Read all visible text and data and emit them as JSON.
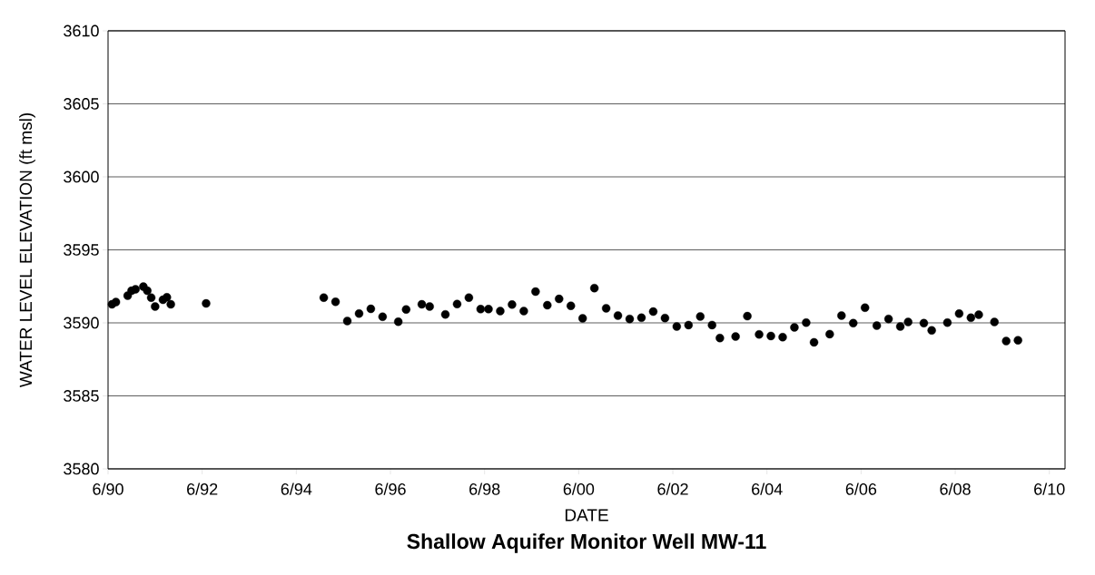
{
  "chart_data": {
    "type": "scatter",
    "title": "**Shallow Aquifer Monitor Well MW-11**",
    "xlabel": "DATE",
    "ylabel": "WATER LEVEL ELEVATION (ft msl)",
    "x": [
      "1990-07",
      "1990-08",
      "1990-11",
      "1990-12",
      "1991-01",
      "1991-03",
      "1991-04",
      "1991-05",
      "1991-06",
      "1991-08",
      "1991-09",
      "1991-10",
      "1992-07",
      "1995-01",
      "1995-04",
      "1995-07",
      "1995-10",
      "1996-01",
      "1996-04",
      "1996-08",
      "1996-10",
      "1997-02",
      "1997-04",
      "1997-08",
      "1997-11",
      "1998-02",
      "1998-05",
      "1998-07",
      "1998-10",
      "1999-01",
      "1999-04",
      "1999-07",
      "1999-10",
      "2000-01",
      "2000-04",
      "2000-07",
      "2000-10",
      "2001-01",
      "2001-04",
      "2001-07",
      "2001-10",
      "2002-01",
      "2002-04",
      "2002-07",
      "2002-10",
      "2003-01",
      "2003-04",
      "2003-06",
      "2003-10",
      "2004-01",
      "2004-04",
      "2004-07",
      "2004-10",
      "2005-01",
      "2005-04",
      "2005-06",
      "2005-10",
      "2006-01",
      "2006-04",
      "2006-07",
      "2006-10",
      "2007-01",
      "2007-04",
      "2007-06",
      "2007-10",
      "2007-12",
      "2008-04",
      "2008-07",
      "2008-10",
      "2008-12",
      "2009-04",
      "2009-07",
      "2009-10"
    ],
    "values": [
      3591.27,
      3591.42,
      3591.86,
      3592.2,
      3592.3,
      3592.48,
      3592.2,
      3591.73,
      3591.12,
      3591.58,
      3591.75,
      3591.27,
      3591.33,
      3591.73,
      3591.44,
      3590.13,
      3590.64,
      3590.96,
      3590.42,
      3590.08,
      3590.92,
      3591.27,
      3591.12,
      3590.58,
      3591.29,
      3591.73,
      3590.94,
      3590.94,
      3590.81,
      3591.25,
      3590.81,
      3592.14,
      3591.21,
      3591.64,
      3591.17,
      3590.31,
      3592.38,
      3591.0,
      3590.5,
      3590.27,
      3590.35,
      3590.77,
      3590.33,
      3589.75,
      3589.85,
      3590.44,
      3589.85,
      3588.96,
      3589.06,
      3590.46,
      3589.21,
      3589.1,
      3589.02,
      3589.69,
      3590.02,
      3588.67,
      3589.23,
      3590.5,
      3589.98,
      3591.04,
      3589.81,
      3590.27,
      3589.75,
      3590.06,
      3589.98,
      3589.48,
      3590.02,
      3590.63,
      3590.35,
      3590.56,
      3590.06,
      3588.75,
      3588.81
    ],
    "color": "#000000",
    "xlim": [
      "1990-06",
      "2010-10"
    ],
    "ylim": [
      3580,
      3610
    ],
    "xticks": [
      {
        "value": "1990-06",
        "label": "6/90"
      },
      {
        "value": "1992-06",
        "label": "6/92"
      },
      {
        "value": "1994-06",
        "label": "6/94"
      },
      {
        "value": "1996-06",
        "label": "6/96"
      },
      {
        "value": "1998-06",
        "label": "6/98"
      },
      {
        "value": "2000-06",
        "label": "6/00"
      },
      {
        "value": "2002-06",
        "label": "6/02"
      },
      {
        "value": "2004-06",
        "label": "6/04"
      },
      {
        "value": "2006-06",
        "label": "6/06"
      },
      {
        "value": "2008-06",
        "label": "6/08"
      },
      {
        "value": "2010-06",
        "label": "6/10"
      }
    ],
    "yticks": [
      3580,
      3585,
      3590,
      3595,
      3600,
      3605,
      3610
    ],
    "grid": "y"
  }
}
